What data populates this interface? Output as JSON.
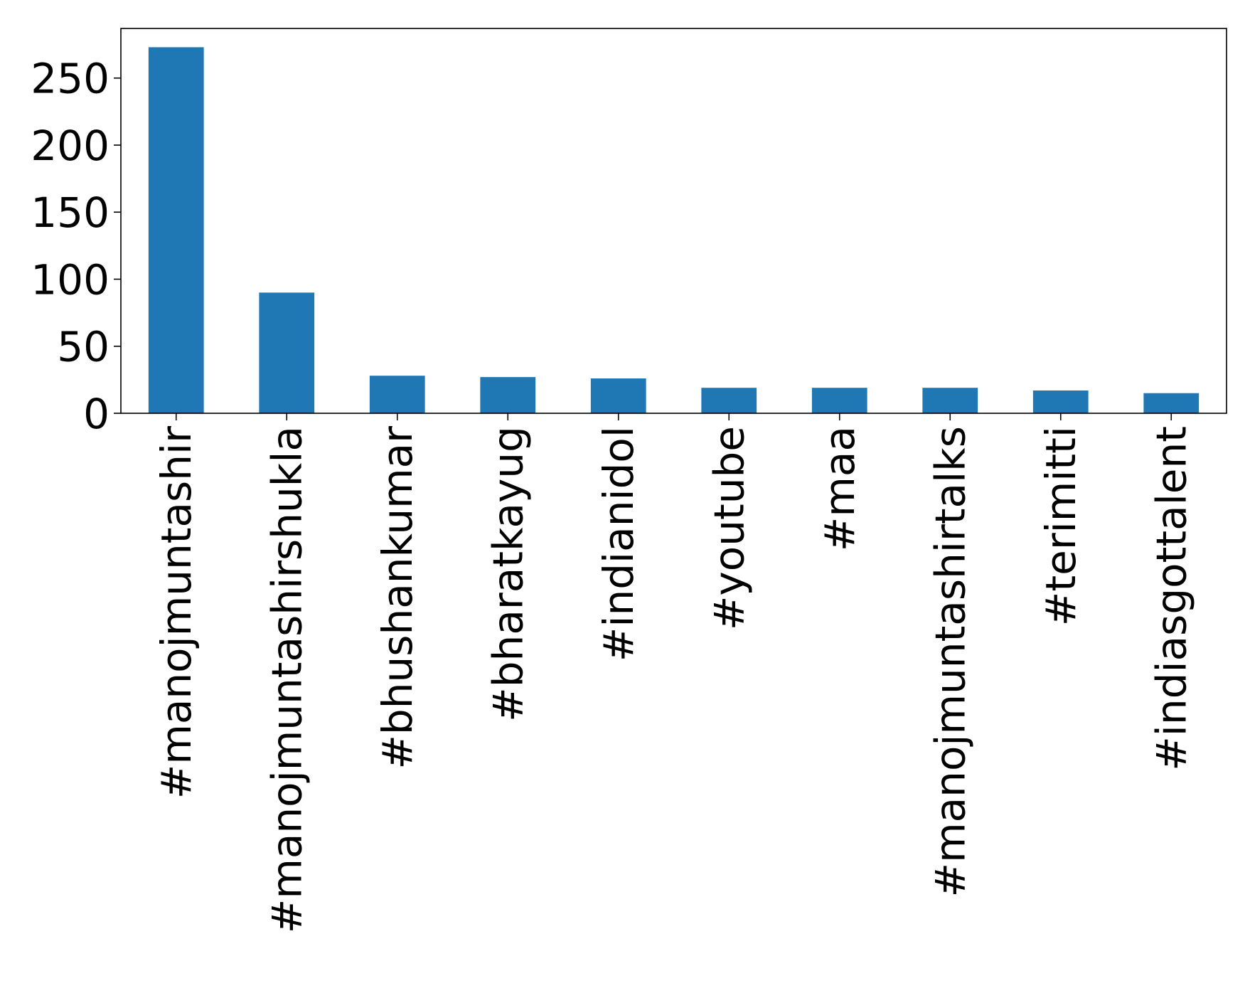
{
  "chart_data": {
    "type": "bar",
    "title": "",
    "xlabel": "",
    "ylabel": "",
    "categories": [
      "#manojmuntashir",
      "#manojmuntashirshukla",
      "#bhushankumar",
      "#bharatkayug",
      "#indianidol",
      "#youtube",
      "#maa",
      "#manojmuntashirtalks",
      "#terimitti",
      "#indiasgottalent"
    ],
    "values": [
      273,
      90,
      28,
      27,
      26,
      19,
      19,
      19,
      17,
      15
    ],
    "ylim": [
      0,
      287
    ],
    "yticks": [
      0,
      50,
      100,
      150,
      200,
      250
    ],
    "ytick_labels": [
      "0",
      "50",
      "100",
      "150",
      "200",
      "250"
    ],
    "bar_color": "#1f77b4",
    "grid": false,
    "legend": false
  }
}
